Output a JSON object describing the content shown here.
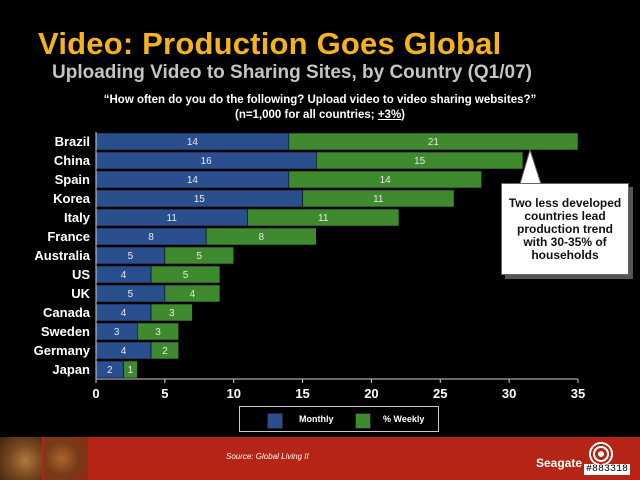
{
  "slide": {
    "title": "Video: Production Goes Global",
    "subtitle": "Uploading Video to Sharing Sites, by Country (Q1/07)",
    "question_line1": "“How often do you do the following?  Upload video to video sharing websites?”",
    "question_line2_prefix": "(n=1,000 for all countries; ",
    "question_line2_margin": "+3%",
    "question_line2_suffix": ")",
    "callout": "Two less developed countries lead production trend with 30-35% of households",
    "source": "Source:  Global Living II",
    "brand": "Seagate",
    "image_id": "#883318"
  },
  "colors": {
    "monthly": "#2a4f8f",
    "weekly": "#3f8a2e",
    "title": "#f5b21b",
    "footer": "#b52414"
  },
  "chart_data": {
    "type": "bar",
    "orientation": "horizontal",
    "stacked": true,
    "categories": [
      "Brazil",
      "China",
      "Spain",
      "Korea",
      "Italy",
      "France",
      "Australia",
      "US",
      "UK",
      "Canada",
      "Sweden",
      "Germany",
      "Japan"
    ],
    "series": [
      {
        "name": "Monthly",
        "values": [
          14,
          16,
          14,
          15,
          11,
          8,
          5,
          4,
          5,
          4,
          3,
          4,
          2
        ]
      },
      {
        "name": "% Weekly",
        "values": [
          21,
          15,
          14,
          11,
          11,
          8,
          5,
          5,
          4,
          3,
          3,
          2,
          1
        ]
      }
    ],
    "xlim": [
      0,
      35
    ],
    "xticks": [
      0,
      5,
      10,
      15,
      20,
      25,
      30,
      35
    ],
    "grid": false,
    "legend": "bottom"
  }
}
